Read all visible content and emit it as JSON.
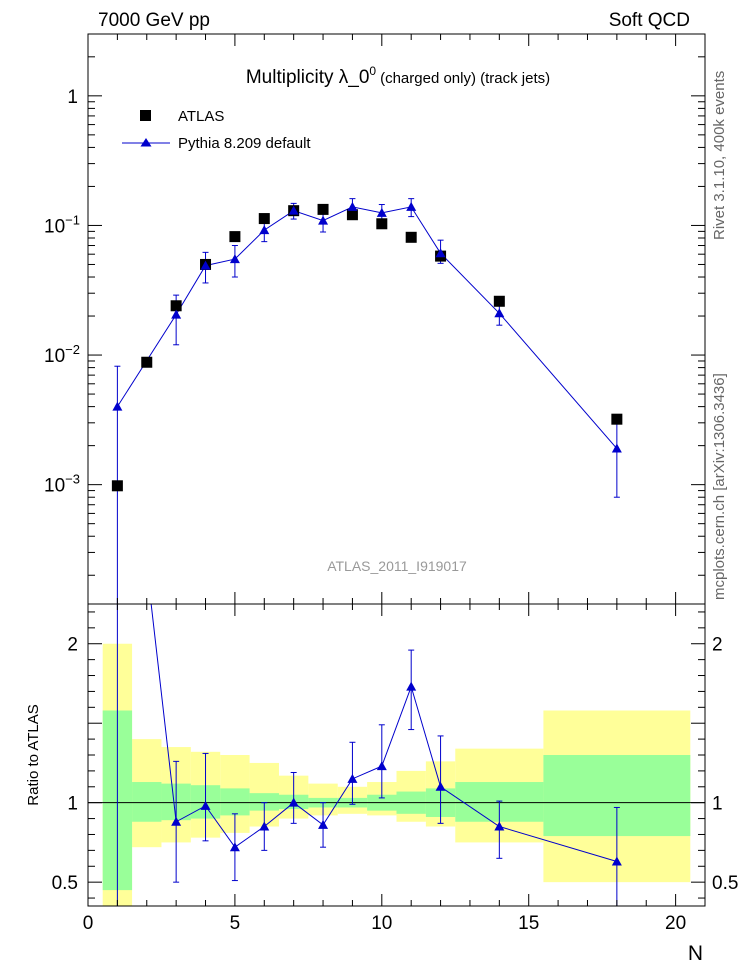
{
  "header": {
    "energy_label": "7000 GeV pp",
    "process_label": "Soft QCD",
    "side_label_top": "Rivet 3.1.10,  400k events",
    "side_label_bottom": "mcplots.cern.ch [arXiv:1306.3436]",
    "analysis_id": "ATLAS_2011_I919017"
  },
  "chart_data": [
    {
      "type": "scatter",
      "panel": "main",
      "title": "Multiplicity  λ_0⁰ (charged only) (track jets)",
      "title_main": "Multiplicity  λ_0",
      "title_sup": "0",
      "title_rest": "(charged only) (track jets)",
      "xlabel": "N",
      "ylabel": "",
      "xlim": [
        0,
        21
      ],
      "ylim": [
        0.00012,
        3.0
      ],
      "yscale": "log",
      "legend_position": "top-left",
      "x_ticks": [
        "0",
        "5",
        "10",
        "15",
        "20"
      ],
      "y_ticks": [
        {
          "mantissa": "10",
          "exp": "−3",
          "value": 0.001
        },
        {
          "mantissa": "10",
          "exp": "−2",
          "value": 0.01
        },
        {
          "mantissa": "10",
          "exp": "−1",
          "value": 0.1
        },
        {
          "mantissa": "1",
          "exp": "",
          "value": 1
        }
      ],
      "series": [
        {
          "name": "ATLAS",
          "marker": "square",
          "color": "#000000",
          "x": [
            1,
            2,
            3,
            4,
            5,
            6,
            7,
            8,
            9,
            10,
            11,
            12,
            14,
            18
          ],
          "y": [
            0.00098,
            0.0088,
            0.024,
            0.05,
            0.082,
            0.113,
            0.13,
            0.133,
            0.121,
            0.103,
            0.081,
            0.058,
            0.026,
            0.0032
          ]
        },
        {
          "name": "Pythia 8.209 default",
          "marker": "triangle",
          "color": "#0000cc",
          "x": [
            1,
            3,
            4,
            5,
            6,
            7,
            8,
            9,
            10,
            11,
            12,
            14,
            18
          ],
          "y": [
            0.004,
            0.0205,
            0.049,
            0.055,
            0.092,
            0.13,
            0.109,
            0.139,
            0.125,
            0.139,
            0.061,
            0.021,
            0.0019
          ],
          "y_err_low": [
            0.0039,
            0.0085,
            0.013,
            0.015,
            0.017,
            0.018,
            0.02,
            0.02,
            0.02,
            0.022,
            0.01,
            0.004,
            0.0011
          ],
          "y_err_high": [
            0.0042,
            0.0085,
            0.013,
            0.015,
            0.017,
            0.018,
            0.02,
            0.022,
            0.02,
            0.022,
            0.016,
            0.004,
            0.0013
          ]
        }
      ]
    },
    {
      "type": "line",
      "panel": "ratio",
      "title": "",
      "xlabel": "N",
      "ylabel": "Ratio to ATLAS",
      "xlim": [
        0,
        21
      ],
      "ylim": [
        0.35,
        2.25
      ],
      "reference_line": 1,
      "x_ticks": [
        "0",
        "5",
        "10",
        "15",
        "20"
      ],
      "y_ticks": [
        "0.5",
        "1",
        "2"
      ],
      "bands": {
        "x_low": [
          0.5,
          1.5,
          2.5,
          3.5,
          4.5,
          5.5,
          6.5,
          7.5,
          8.5,
          9.5,
          10.5,
          11.5,
          12.5,
          15.5
        ],
        "x_high": [
          1.5,
          2.5,
          3.5,
          4.5,
          5.5,
          6.5,
          7.5,
          8.5,
          9.5,
          10.5,
          11.5,
          12.5,
          15.5,
          20.5
        ],
        "stat_low": [
          0.45,
          0.88,
          0.89,
          0.9,
          0.92,
          0.95,
          0.96,
          0.97,
          0.97,
          0.95,
          0.93,
          0.91,
          0.88,
          0.79
        ],
        "stat_high": [
          1.58,
          1.13,
          1.12,
          1.11,
          1.09,
          1.06,
          1.05,
          1.03,
          1.03,
          1.05,
          1.07,
          1.09,
          1.13,
          1.3
        ],
        "total_low": [
          0.3,
          0.72,
          0.75,
          0.78,
          0.81,
          0.85,
          0.9,
          0.92,
          0.93,
          0.92,
          0.88,
          0.85,
          0.75,
          0.5
        ],
        "total_high": [
          2.0,
          1.4,
          1.35,
          1.32,
          1.3,
          1.25,
          1.17,
          1.12,
          1.1,
          1.13,
          1.2,
          1.26,
          1.34,
          1.58
        ],
        "stat_color": "#99ff99",
        "total_color": "#ffff99"
      },
      "series": [
        {
          "name": "Pythia 8.209 default",
          "color": "#0000cc",
          "x": [
            1,
            3,
            4,
            5,
            6,
            7,
            8,
            9,
            10,
            11,
            12,
            14,
            18
          ],
          "y": [
            4.1,
            0.88,
            0.98,
            0.72,
            0.85,
            1.0,
            0.86,
            1.15,
            1.23,
            1.73,
            1.1,
            0.85,
            0.63
          ],
          "y_err_low": [
            4.0,
            0.38,
            0.22,
            0.21,
            0.15,
            0.13,
            0.14,
            0.16,
            0.2,
            0.27,
            0.23,
            0.2,
            0.3
          ],
          "y_err_high": [
            4.0,
            0.38,
            0.33,
            0.21,
            0.15,
            0.19,
            0.14,
            0.23,
            0.26,
            0.23,
            0.32,
            0.16,
            0.34
          ]
        }
      ]
    }
  ]
}
